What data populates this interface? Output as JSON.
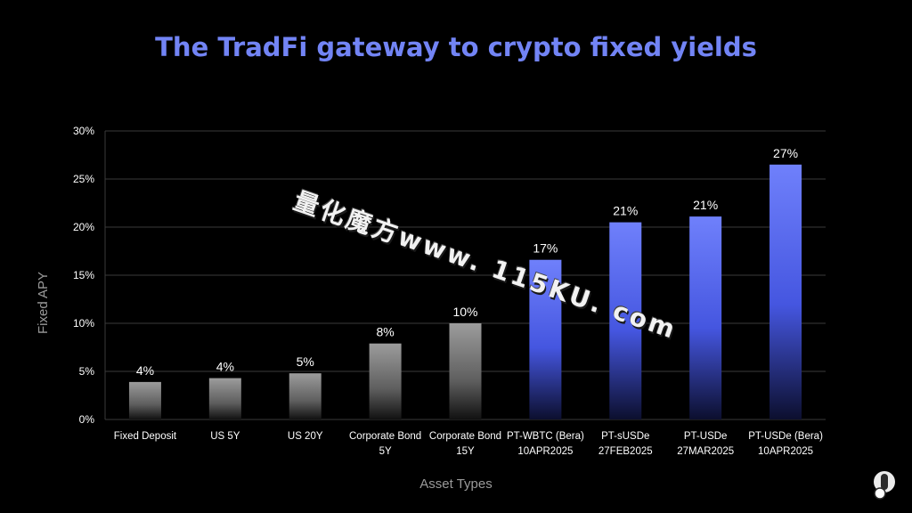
{
  "title": "The TradFi gateway to crypto fixed yields",
  "watermark": "量化魔方www. 115KU. com",
  "colors": {
    "background": "#000000",
    "title": "#7284f5",
    "gray_bar": "#9a9a9a",
    "blue_bar": "#6f7ff9",
    "axis_text": "#ffffff",
    "axis_label": "#9a9a9a",
    "grid": "#3a3a3a"
  },
  "chart_data": {
    "type": "bar",
    "xlabel": "Asset Types",
    "ylabel": "Fixed APY",
    "ylim": [
      0,
      30
    ],
    "yticks": [
      "0%",
      "5%",
      "10%",
      "15%",
      "20%",
      "25%",
      "30%"
    ],
    "ytick_values": [
      0,
      5,
      10,
      15,
      20,
      25,
      30
    ],
    "grid": true,
    "categories": [
      [
        "Fixed Deposit"
      ],
      [
        "US 5Y"
      ],
      [
        "US 20Y"
      ],
      [
        "Corporate Bond",
        "5Y"
      ],
      [
        "Corporate Bond",
        "15Y"
      ],
      [
        "PT-WBTC (Bera)",
        "10APR2025"
      ],
      [
        "PT-sUSDe",
        "27FEB2025"
      ],
      [
        "PT-USDe",
        "27MAR2025"
      ],
      [
        "PT-USDe (Bera)",
        "10APR2025"
      ]
    ],
    "values": [
      3.9,
      4.3,
      4.8,
      7.9,
      10.0,
      16.6,
      20.5,
      21.1,
      26.5
    ],
    "labels": [
      "4%",
      "4%",
      "5%",
      "8%",
      "10%",
      "17%",
      "21%",
      "21%",
      "27%"
    ],
    "bar_style": [
      "gray",
      "gray",
      "gray",
      "gray",
      "gray",
      "blue",
      "blue",
      "blue",
      "blue"
    ]
  },
  "corner_widget": "toggle-icon"
}
